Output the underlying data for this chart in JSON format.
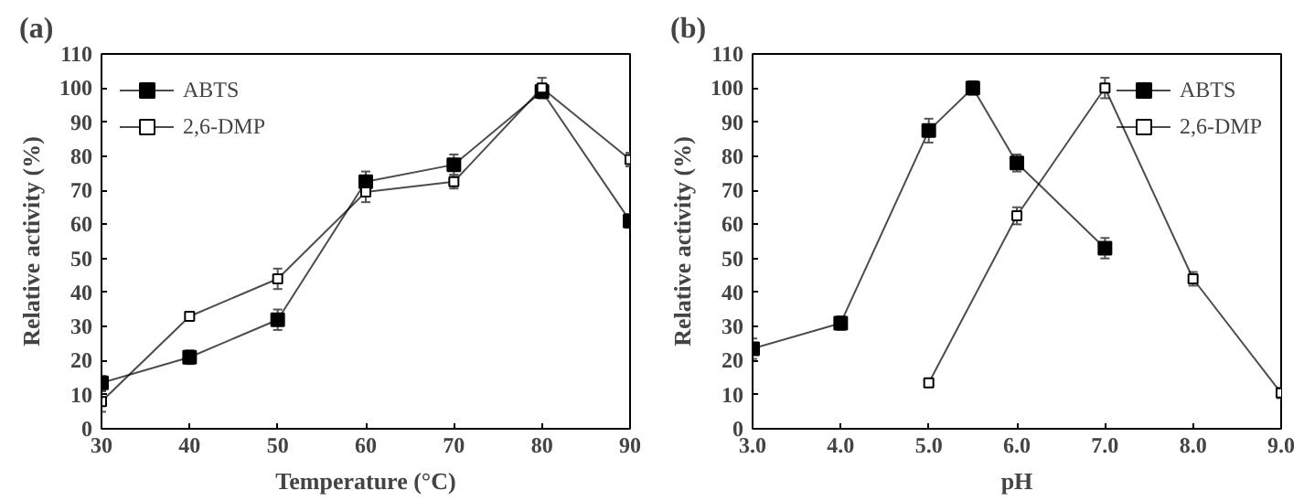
{
  "chart_data": [
    {
      "type": "line",
      "title": "(a)",
      "xlabel": "Temperature (°C)",
      "ylabel": "Relative activity (%)",
      "xlim": [
        30,
        90
      ],
      "xticks": [
        30,
        40,
        50,
        60,
        70,
        80,
        90
      ],
      "ylim": [
        0,
        110
      ],
      "yticks": [
        0,
        10,
        20,
        30,
        40,
        50,
        60,
        70,
        80,
        90,
        100,
        110
      ],
      "x": [
        30,
        40,
        50,
        60,
        70,
        80,
        90
      ],
      "marker": "square",
      "legend": "top left",
      "grid": false,
      "series": [
        {
          "name": "ABTS",
          "color": "#000000",
          "values": [
            13.5,
            21,
            32,
            72.5,
            77.5,
            99,
            61
          ],
          "errors": [
            2,
            2,
            3,
            3,
            3,
            2,
            2
          ]
        },
        {
          "name": "2,6-DMP",
          "color": "#000000",
          "values": [
            8,
            33,
            44,
            69.5,
            72.5,
            100,
            79
          ],
          "errors": [
            3,
            1,
            3,
            3,
            2,
            3,
            2
          ]
        }
      ]
    },
    {
      "type": "line",
      "title": "(b)",
      "xlabel": "pH",
      "ylabel": "Relative activity (%)",
      "xlim": [
        3,
        9
      ],
      "xticks": [
        {
          "value": 3,
          "label": "3.0"
        },
        {
          "value": 4,
          "label": "4.0"
        },
        {
          "value": 5,
          "label": "5.0"
        },
        {
          "value": 6,
          "label": "6.0"
        },
        {
          "value": 7,
          "label": "7.0"
        },
        {
          "value": 8,
          "label": "8.0"
        },
        {
          "value": 9,
          "label": "9.0"
        }
      ],
      "ylim": [
        0,
        110
      ],
      "yticks": [
        0,
        10,
        20,
        30,
        40,
        50,
        60,
        70,
        80,
        90,
        100,
        110
      ],
      "marker": "square",
      "legend": "top right",
      "grid": false,
      "series": [
        {
          "name": "ABTS",
          "color": "#000000",
          "x": [
            3,
            4,
            5,
            5.5,
            6,
            7
          ],
          "values": [
            23.5,
            31,
            87.5,
            100,
            78,
            53
          ],
          "errors": [
            3,
            2,
            3.5,
            2,
            2.5,
            3
          ]
        },
        {
          "name": "2,6-DMP",
          "color": "#000000",
          "x": [
            5,
            6,
            7,
            8,
            9
          ],
          "values": [
            13.5,
            62.5,
            100,
            44,
            10.5
          ],
          "errors": [
            1,
            2.5,
            3,
            2,
            1.5
          ]
        }
      ]
    }
  ]
}
